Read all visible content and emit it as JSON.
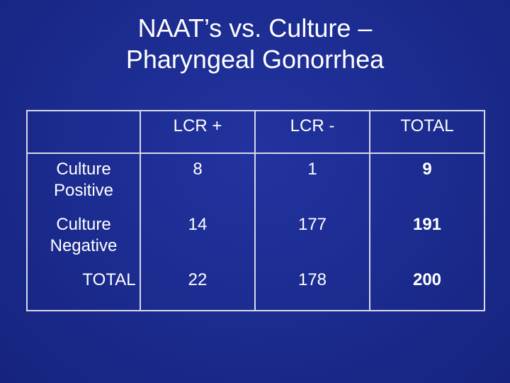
{
  "slide": {
    "title_line1": "NAAT’s vs. Culture –",
    "title_line2": "Pharyngeal Gonorrhea"
  },
  "table": {
    "headers": [
      "LCR +",
      "LCR -",
      "TOTAL"
    ],
    "rows": [
      {
        "label_line1": "Culture",
        "label_line2": "Positive",
        "values": [
          "8",
          "1",
          "9"
        ]
      },
      {
        "label_line1": "Culture",
        "label_line2": "Negative",
        "values": [
          "14",
          "177",
          "191"
        ]
      },
      {
        "label_line1": "TOTAL",
        "label_line2": "",
        "values": [
          "22",
          "178",
          "200"
        ]
      }
    ]
  }
}
